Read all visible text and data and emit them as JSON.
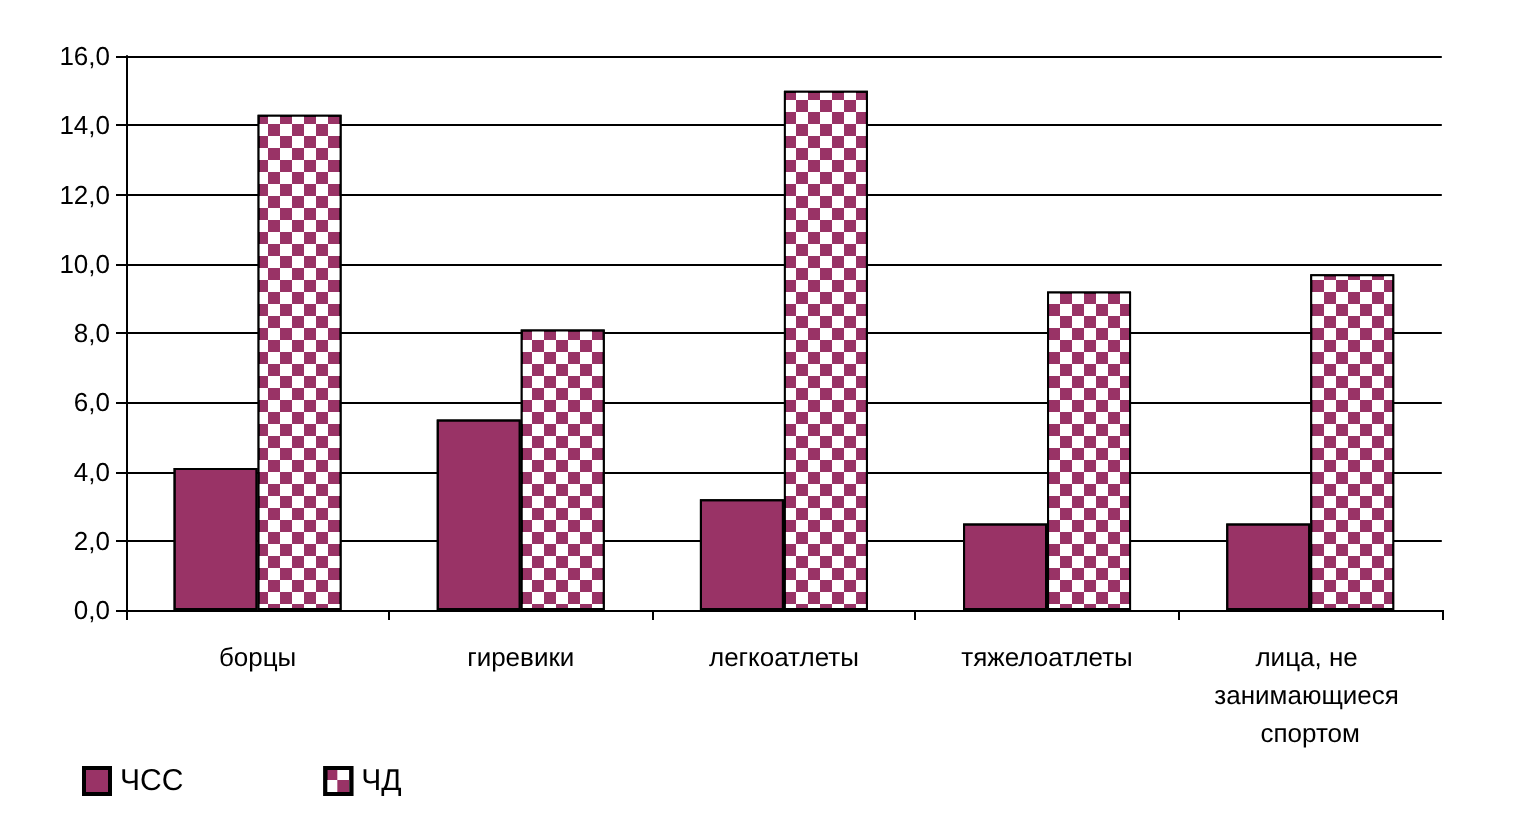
{
  "chart_data": {
    "type": "bar",
    "categories": [
      "борцы",
      "гиревики",
      "легкоатлеты",
      "тяжелоатлеты",
      "лица, не занимающиеся спортом"
    ],
    "series": [
      {
        "name": "ЧСС",
        "color": "#993366",
        "values": [
          4.1,
          5.5,
          3.2,
          2.5,
          2.5
        ]
      },
      {
        "name": "ЧД",
        "color": "#993366",
        "values": [
          14.3,
          8.1,
          15.0,
          9.2,
          9.7
        ]
      }
    ],
    "ylim": [
      0,
      16
    ],
    "yticks": [
      {
        "value": 0,
        "label": "0,0"
      },
      {
        "value": 2,
        "label": "2,0"
      },
      {
        "value": 4,
        "label": "4,0"
      },
      {
        "value": 6,
        "label": "6,0"
      },
      {
        "value": 8,
        "label": "8,0"
      },
      {
        "value": 10,
        "label": "10,0"
      },
      {
        "value": 12,
        "label": "12,0"
      },
      {
        "value": 14,
        "label": "14,0"
      },
      {
        "value": 16,
        "label": "16,0"
      }
    ],
    "grid": "y",
    "legend": "bottom left"
  }
}
